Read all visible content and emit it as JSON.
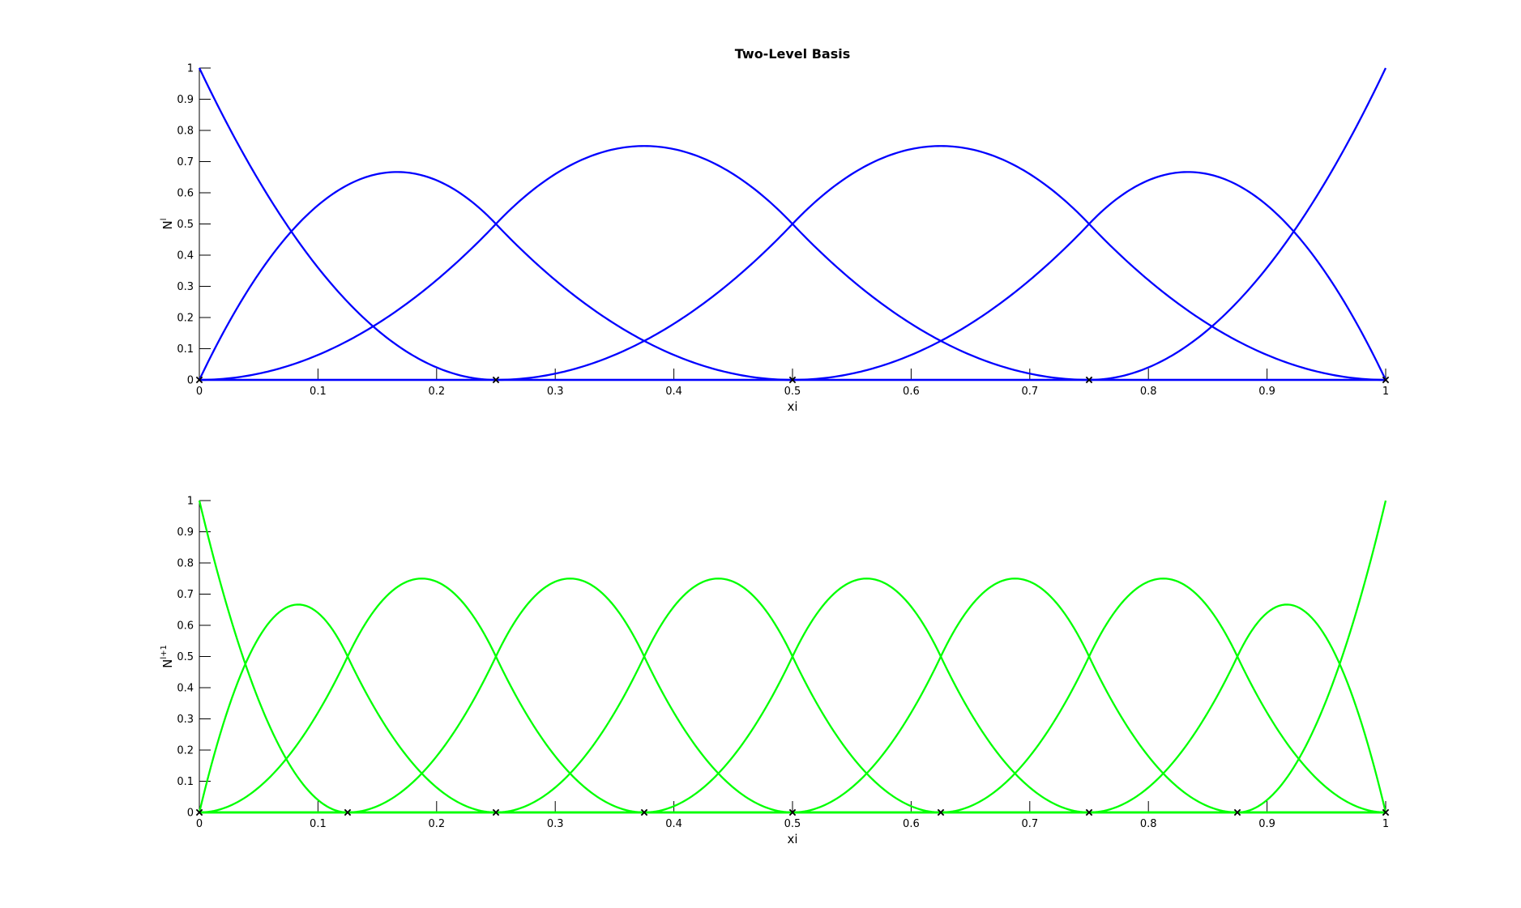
{
  "chart_data": [
    {
      "type": "line",
      "title": "Two-Level Basis",
      "xlabel": "xi",
      "ylabel": {
        "base": "N",
        "superscript": "l"
      },
      "xlim": [
        0,
        1
      ],
      "ylim": [
        0,
        1
      ],
      "xticks": [
        "0",
        "0.1",
        "0.2",
        "0.3",
        "0.4",
        "0.5",
        "0.6",
        "0.7",
        "0.8",
        "0.9",
        "1"
      ],
      "yticks": [
        "0",
        "0.1",
        "0.2",
        "0.3",
        "0.4",
        "0.5",
        "0.6",
        "0.7",
        "0.8",
        "0.9",
        "1"
      ],
      "grid": false,
      "color": "#0000ff",
      "degree": 2,
      "knot_vector": [
        0,
        0,
        0,
        0.25,
        0.5,
        0.75,
        1,
        1,
        1
      ],
      "knot_markers": [
        0,
        0.25,
        0.5,
        0.75,
        1
      ],
      "series": [
        {
          "x": [
            0,
            0.125,
            0.25,
            0.375,
            0.5,
            0.625,
            0.75,
            0.875,
            1
          ],
          "values": [
            1,
            0.25,
            0,
            0,
            0,
            0,
            0,
            0,
            0
          ]
        },
        {
          "x": [
            0,
            0.125,
            0.25,
            0.375,
            0.5,
            0.625,
            0.75,
            0.875,
            1
          ],
          "values": [
            0,
            0.625,
            0.5,
            0.125,
            0,
            0,
            0,
            0,
            0
          ]
        },
        {
          "x": [
            0,
            0.125,
            0.25,
            0.375,
            0.5,
            0.625,
            0.75,
            0.875,
            1
          ],
          "values": [
            0,
            0.125,
            0.5,
            0.75,
            0.5,
            0.125,
            0,
            0,
            0
          ]
        },
        {
          "x": [
            0,
            0.125,
            0.25,
            0.375,
            0.5,
            0.625,
            0.75,
            0.875,
            1
          ],
          "values": [
            0,
            0,
            0,
            0.125,
            0.5,
            0.75,
            0.5,
            0.125,
            0
          ]
        },
        {
          "x": [
            0,
            0.125,
            0.25,
            0.375,
            0.5,
            0.625,
            0.75,
            0.875,
            1
          ],
          "values": [
            0,
            0,
            0,
            0,
            0,
            0.125,
            0.5,
            0.625,
            0
          ]
        },
        {
          "x": [
            0,
            0.125,
            0.25,
            0.375,
            0.5,
            0.625,
            0.75,
            0.875,
            1
          ],
          "values": [
            0,
            0,
            0,
            0,
            0,
            0,
            0,
            0.25,
            1
          ]
        }
      ]
    },
    {
      "type": "line",
      "title": "",
      "xlabel": "xi",
      "ylabel": {
        "base": "N",
        "superscript": "l+1"
      },
      "xlim": [
        0,
        1
      ],
      "ylim": [
        0,
        1
      ],
      "xticks": [
        "0",
        "0.1",
        "0.2",
        "0.3",
        "0.4",
        "0.5",
        "0.6",
        "0.7",
        "0.8",
        "0.9",
        "1"
      ],
      "yticks": [
        "0",
        "0.1",
        "0.2",
        "0.3",
        "0.4",
        "0.5",
        "0.6",
        "0.7",
        "0.8",
        "0.9",
        "1"
      ],
      "grid": false,
      "color": "#00ff00",
      "degree": 2,
      "knot_vector": [
        0,
        0,
        0,
        0.125,
        0.25,
        0.375,
        0.5,
        0.625,
        0.75,
        0.875,
        1,
        1,
        1
      ],
      "knot_markers": [
        0,
        0.125,
        0.25,
        0.375,
        0.5,
        0.625,
        0.75,
        0.875,
        1
      ],
      "series": [
        {
          "x": [
            0,
            0.0625,
            0.125,
            0.25,
            0.375,
            0.5,
            0.625,
            0.75,
            0.875,
            0.9375,
            1
          ],
          "values": [
            1,
            0.25,
            0,
            0,
            0,
            0,
            0,
            0,
            0,
            0,
            0
          ]
        },
        {
          "x": [
            0,
            0.0625,
            0.125,
            0.25,
            0.375,
            0.5,
            0.625,
            0.75,
            0.875,
            0.9375,
            1
          ],
          "values": [
            0,
            0.625,
            0.5,
            0,
            0,
            0,
            0,
            0,
            0,
            0,
            0
          ]
        },
        {
          "x": [
            0,
            0.0625,
            0.125,
            0.25,
            0.375,
            0.5,
            0.625,
            0.75,
            0.875,
            0.9375,
            1
          ],
          "values": [
            0,
            0.125,
            0.5,
            0.5,
            0,
            0,
            0,
            0,
            0,
            0,
            0
          ]
        },
        {
          "x": [
            0,
            0.0625,
            0.125,
            0.25,
            0.375,
            0.5,
            0.625,
            0.75,
            0.875,
            0.9375,
            1
          ],
          "values": [
            0,
            0,
            0,
            0.5,
            0.5,
            0,
            0,
            0,
            0,
            0,
            0
          ]
        },
        {
          "x": [
            0,
            0.0625,
            0.125,
            0.25,
            0.375,
            0.5,
            0.625,
            0.75,
            0.875,
            0.9375,
            1
          ],
          "values": [
            0,
            0,
            0,
            0,
            0.5,
            0.5,
            0,
            0,
            0,
            0,
            0
          ]
        },
        {
          "x": [
            0,
            0.0625,
            0.125,
            0.25,
            0.375,
            0.5,
            0.625,
            0.75,
            0.875,
            0.9375,
            1
          ],
          "values": [
            0,
            0,
            0,
            0,
            0,
            0.5,
            0.5,
            0,
            0,
            0,
            0
          ]
        },
        {
          "x": [
            0,
            0.0625,
            0.125,
            0.25,
            0.375,
            0.5,
            0.625,
            0.75,
            0.875,
            0.9375,
            1
          ],
          "values": [
            0,
            0,
            0,
            0,
            0,
            0,
            0.5,
            0.5,
            0,
            0,
            0
          ]
        },
        {
          "x": [
            0,
            0.0625,
            0.125,
            0.25,
            0.375,
            0.5,
            0.625,
            0.75,
            0.875,
            0.9375,
            1
          ],
          "values": [
            0,
            0,
            0,
            0,
            0,
            0,
            0,
            0.5,
            0.5,
            0.125,
            0
          ]
        },
        {
          "x": [
            0,
            0.0625,
            0.125,
            0.25,
            0.375,
            0.5,
            0.625,
            0.75,
            0.875,
            0.9375,
            1
          ],
          "values": [
            0,
            0,
            0,
            0,
            0,
            0,
            0,
            0,
            0.5,
            0.625,
            0
          ]
        },
        {
          "x": [
            0,
            0.0625,
            0.125,
            0.25,
            0.375,
            0.5,
            0.625,
            0.75,
            0.875,
            0.9375,
            1
          ],
          "values": [
            0,
            0,
            0,
            0,
            0,
            0,
            0,
            0,
            0,
            0.25,
            1
          ]
        }
      ]
    }
  ]
}
